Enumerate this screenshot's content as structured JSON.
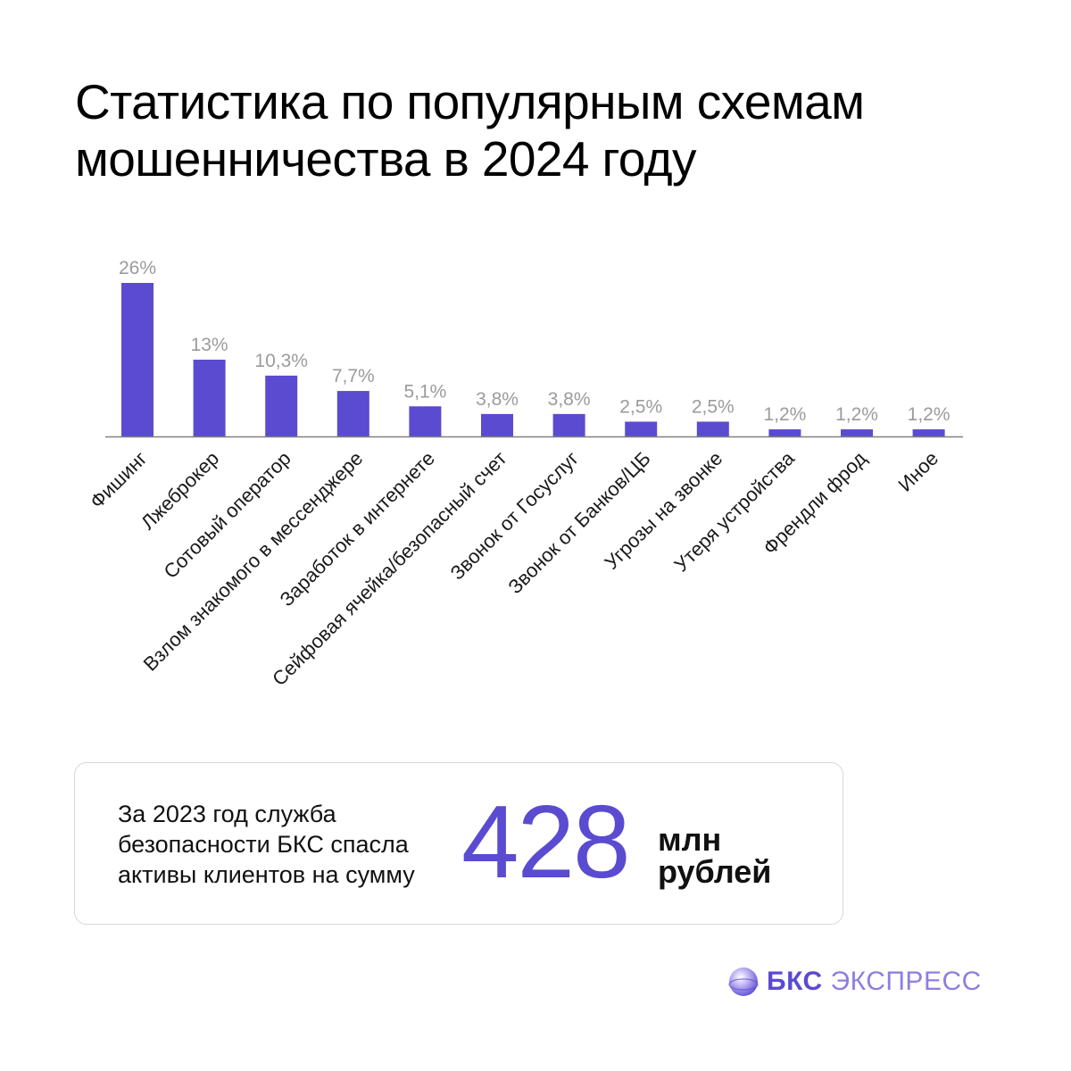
{
  "header": {
    "title_line1": "Статистика по популярным схемам",
    "title_line2": "мошенничества в 2024 году"
  },
  "colors": {
    "bar": "#5b4bd1",
    "value_label": "#9b9b9b",
    "axis": "#808080",
    "accent": "#5b4bd1"
  },
  "chart_data": {
    "type": "bar",
    "title": "Статистика по популярным схемам мошенничества в 2024 году",
    "categories": [
      "Фишинг",
      "Лжеброкер",
      "Сотовый оператор",
      "Взлом знакомого в мессенджере",
      "Заработок в интернете",
      "Сейфовая ячейка/безопасный счет",
      "Звонок от Госуслуг",
      "Звонок от Банков/ЦБ",
      "Угрозы на звонке",
      "Утеря устройства",
      "Френдли фрод",
      "Иное"
    ],
    "values": [
      26,
      13,
      10.3,
      7.7,
      5.1,
      3.8,
      3.8,
      2.5,
      2.5,
      1.2,
      1.2,
      1.2
    ],
    "value_labels": [
      "26%",
      "13%",
      "10,3%",
      "7,7%",
      "5,1%",
      "3,8%",
      "3,8%",
      "2,5%",
      "2,5%",
      "1,2%",
      "1,2%",
      "1,2%"
    ],
    "ylim": [
      0,
      26
    ],
    "grid": false,
    "legend": "none"
  },
  "info": {
    "text_line1": "За 2023 год служба",
    "text_line2": "безопасности БКС спасла",
    "text_line3": "активы клиентов на сумму",
    "amount": "428",
    "unit_line1": "млн",
    "unit_line2": "рублей"
  },
  "brand": {
    "icon": "sphere-logo-icon",
    "name_bold": "БКС",
    "name_light": "ЭКСПРЕСС"
  }
}
